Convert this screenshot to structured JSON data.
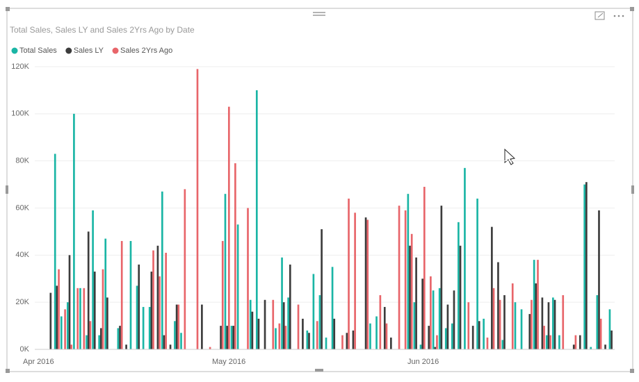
{
  "chart_data": {
    "type": "bar",
    "title": "Total Sales, Sales LY and Sales 2Yrs Ago by Date",
    "categories": [
      "Apr 2016",
      null,
      null,
      null,
      null,
      null,
      null,
      null,
      null,
      null,
      null,
      null,
      null,
      null,
      null,
      null,
      null,
      null,
      null,
      null,
      null,
      null,
      null,
      null,
      null,
      null,
      null,
      null,
      null,
      null,
      "May 2016",
      null,
      null,
      null,
      null,
      null,
      null,
      null,
      null,
      null,
      null,
      null,
      null,
      null,
      null,
      null,
      null,
      null,
      null,
      null,
      null,
      null,
      null,
      null,
      null,
      null,
      null,
      null,
      null,
      null,
      null,
      "Jun 2016",
      null,
      null,
      null,
      null,
      null,
      null,
      null,
      null,
      null,
      null,
      null,
      null,
      null,
      null,
      null,
      null,
      null,
      null,
      null,
      null,
      null,
      null,
      null,
      null,
      null,
      null,
      null,
      null,
      null,
      null
    ],
    "series": [
      {
        "name": "Total Sales",
        "color": "#1ab5a5",
        "values": [
          0,
          0,
          0,
          83000,
          14000,
          20000,
          100000,
          26000,
          6000,
          59000,
          6000,
          47000,
          0,
          9000,
          0,
          46000,
          27000,
          18000,
          18000,
          0,
          67000,
          0,
          12000,
          7000,
          0,
          0,
          0,
          0,
          0,
          0,
          66000,
          10000,
          53000,
          0,
          21000,
          110000,
          0,
          0,
          9000,
          39000,
          22000,
          0,
          0,
          8000,
          32000,
          23000,
          5000,
          35000,
          0,
          0,
          0,
          0,
          0,
          11000,
          14000,
          0,
          0,
          0,
          0,
          66000,
          20000,
          2000,
          0,
          25000,
          26000,
          9000,
          11000,
          54000,
          77000,
          0,
          64000,
          13000,
          0,
          0,
          4000,
          0,
          20000,
          17000,
          0,
          38000,
          0,
          6000,
          22000,
          6000,
          0,
          0,
          0,
          70000,
          1000,
          23000,
          0,
          17000
        ]
      },
      {
        "name": "Sales LY",
        "color": "#3c3c3c",
        "values": [
          0,
          0,
          24000,
          27000,
          0,
          40000,
          0,
          0,
          50000,
          33000,
          9000,
          22000,
          0,
          10000,
          2000,
          0,
          36000,
          0,
          33000,
          44000,
          6000,
          2000,
          19000,
          0,
          0,
          0,
          19000,
          0,
          0,
          10000,
          10000,
          10000,
          0,
          0,
          16000,
          13000,
          21000,
          0,
          0,
          20000,
          36000,
          0,
          13000,
          7000,
          0,
          51000,
          0,
          13000,
          0,
          7000,
          8000,
          0,
          56000,
          0,
          0,
          18000,
          5000,
          0,
          0,
          44000,
          39000,
          30000,
          10000,
          1000,
          61000,
          19000,
          25000,
          44000,
          0,
          10000,
          12000,
          0,
          52000,
          37000,
          23000,
          0,
          0,
          0,
          15000,
          28000,
          22000,
          20000,
          21000,
          0,
          0,
          2000,
          6000,
          71000,
          0,
          59000,
          2000,
          8000
        ]
      },
      {
        "name": "Sales 2Yrs Ago",
        "color": "#e8656a",
        "values": [
          0,
          0,
          0,
          34000,
          17000,
          2000,
          26000,
          26000,
          12000,
          0,
          34000,
          0,
          0,
          46000,
          0,
          0,
          0,
          0,
          42000,
          31000,
          41000,
          0,
          19000,
          68000,
          0,
          119000,
          0,
          1000,
          0,
          46000,
          103000,
          79000,
          0,
          60000,
          0,
          0,
          0,
          21000,
          11000,
          10000,
          0,
          19000,
          0,
          0,
          12000,
          0,
          0,
          0,
          6000,
          64000,
          58000,
          0,
          55000,
          0,
          23000,
          11000,
          0,
          61000,
          59000,
          49000,
          0,
          69000,
          31000,
          6000,
          0,
          0,
          0,
          0,
          20000,
          0,
          0,
          5000,
          26000,
          21000,
          0,
          28000,
          0,
          0,
          21000,
          38000,
          10000,
          6000,
          0,
          23000,
          0,
          6000,
          0,
          0,
          0,
          13000,
          0,
          0
        ]
      }
    ],
    "ylim": [
      0,
      120000
    ],
    "yticks": [
      {
        "value": 0,
        "label": "0K"
      },
      {
        "value": 20000,
        "label": "20K"
      },
      {
        "value": 40000,
        "label": "40K"
      },
      {
        "value": 60000,
        "label": "60K"
      },
      {
        "value": 80000,
        "label": "80K"
      },
      {
        "value": 100000,
        "label": "100K"
      },
      {
        "value": 120000,
        "label": "120K"
      }
    ],
    "grid": true
  }
}
